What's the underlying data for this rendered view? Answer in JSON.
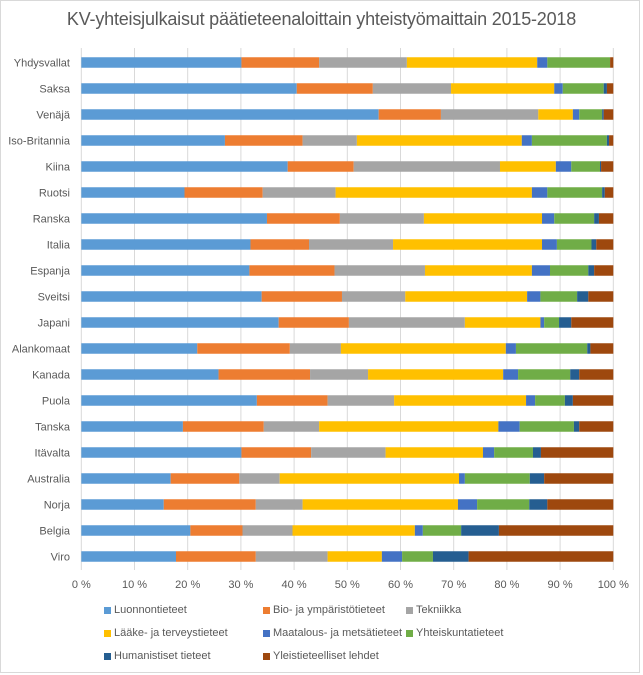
{
  "chart_data": {
    "type": "bar",
    "orientation": "horizontal",
    "stacked": "percent",
    "title": "KV-yhteisjulkaisut päätieteenaloittain yhteistyömaittain 2015-2018",
    "xlabel": "",
    "ylabel": "",
    "xlim": [
      0,
      100
    ],
    "x_ticks": [
      "0 %",
      "10 %",
      "20 %",
      "30 %",
      "40 %",
      "50 %",
      "60 %",
      "70 %",
      "80 %",
      "90 %",
      "100 %"
    ],
    "grid": "vertical",
    "legend_position": "bottom",
    "categories": [
      "Yhdysvallat",
      "Saksa",
      "Venäjä",
      "Iso-Britannia",
      "Kiina",
      "Ruotsi",
      "Ranska",
      "Italia",
      "Espanja",
      "Sveitsi",
      "Japani",
      "Alankomaat",
      "Kanada",
      "Puola",
      "Tanska",
      "Itävalta",
      "Australia",
      "Norja",
      "Belgia",
      "Viro"
    ],
    "series": [
      {
        "name": "Luonnontieteet",
        "color": "#5b9bd5",
        "values": [
          30.1,
          40.5,
          55.9,
          27.0,
          38.8,
          19.4,
          34.9,
          31.8,
          31.6,
          33.9,
          37.1,
          21.8,
          25.8,
          33.0,
          19.1,
          30.1,
          16.8,
          15.5,
          20.5,
          17.8
        ]
      },
      {
        "name": "Bio- ja ympäristötieteet",
        "color": "#ed7d31",
        "values": [
          14.6,
          14.3,
          11.7,
          14.6,
          12.4,
          14.7,
          13.7,
          11.0,
          16.0,
          15.1,
          13.2,
          17.4,
          17.2,
          13.3,
          15.2,
          13.1,
          12.9,
          17.3,
          9.8,
          15.0
        ]
      },
      {
        "name": "Tekniikka",
        "color": "#a5a5a5",
        "values": [
          16.5,
          14.7,
          18.3,
          10.2,
          27.5,
          13.7,
          15.8,
          15.8,
          17.0,
          11.9,
          21.8,
          9.6,
          10.9,
          12.5,
          10.4,
          14.0,
          7.6,
          8.8,
          9.4,
          13.5
        ]
      },
      {
        "name": "Lääke- ja terveystieteet",
        "color": "#ffc000",
        "values": [
          24.5,
          19.4,
          6.5,
          31.0,
          10.5,
          36.9,
          22.2,
          28.0,
          20.1,
          22.9,
          14.2,
          31.0,
          25.4,
          24.8,
          33.7,
          18.3,
          33.7,
          29.2,
          23.0,
          10.2
        ]
      },
      {
        "name": "Maatalous- ja metsätieteet",
        "color": "#4472c4",
        "values": [
          1.9,
          1.6,
          1.2,
          1.9,
          2.9,
          2.9,
          2.3,
          2.8,
          3.4,
          2.5,
          0.7,
          1.9,
          2.8,
          1.7,
          4.0,
          2.1,
          1.1,
          3.6,
          1.5,
          3.8
        ]
      },
      {
        "name": "Yhteiskuntatieteet",
        "color": "#70ad47",
        "values": [
          11.8,
          7.7,
          4.3,
          14.1,
          5.4,
          10.3,
          7.5,
          6.5,
          7.2,
          6.9,
          2.8,
          13.4,
          9.8,
          5.6,
          10.2,
          7.3,
          12.2,
          9.8,
          7.2,
          5.8
        ]
      },
      {
        "name": "Humanistiset tieteet",
        "color": "#255e91",
        "values": [
          0.0,
          0.6,
          0.3,
          0.4,
          0.2,
          0.5,
          0.9,
          0.9,
          1.1,
          2.1,
          2.3,
          0.6,
          1.7,
          1.5,
          1.0,
          1.5,
          2.7,
          3.4,
          7.1,
          6.7
        ]
      },
      {
        "name": "Yleistieteelliset lehdet",
        "color": "#9e480e",
        "values": [
          0.6,
          1.2,
          1.8,
          0.8,
          2.3,
          1.6,
          2.7,
          3.2,
          3.6,
          4.7,
          7.9,
          4.3,
          6.4,
          7.6,
          6.4,
          13.6,
          13.0,
          12.4,
          21.5,
          27.2
        ]
      }
    ]
  }
}
